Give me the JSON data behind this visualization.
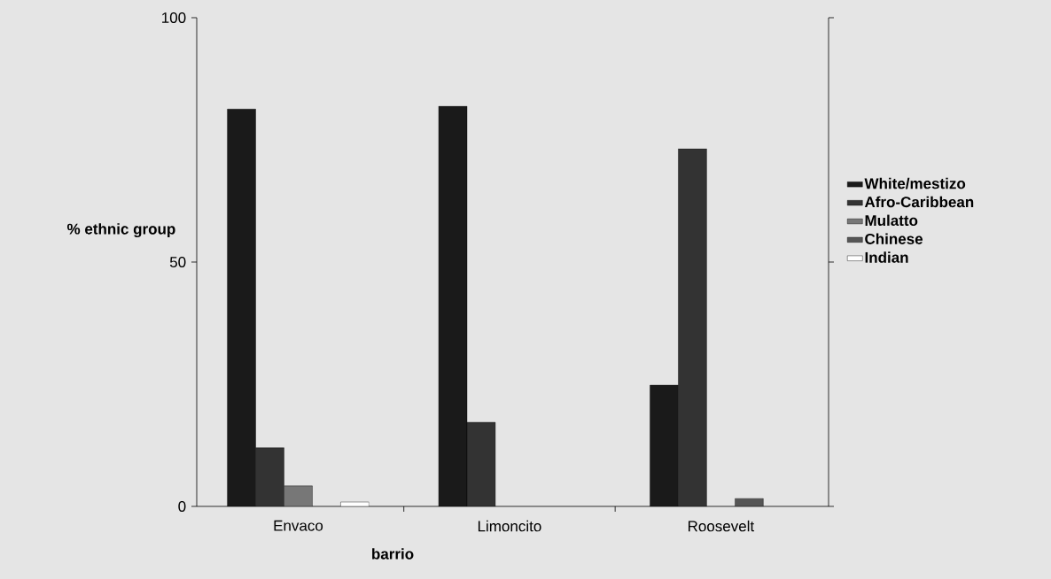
{
  "chart_data": {
    "type": "bar",
    "xlabel": "barrio",
    "ylabel": "% ethnic group",
    "categories": [
      "Envaco",
      "Limoncito",
      "Roosevelt"
    ],
    "series": [
      {
        "name": "White/mestizo",
        "color": "#1a1a1a",
        "values": [
          81.3,
          81.9,
          24.8
        ]
      },
      {
        "name": "Afro-Caribbean",
        "color": "#333333",
        "values": [
          12,
          17.2,
          73.2
        ]
      },
      {
        "name": "Mulatto",
        "color": "#777777",
        "values": [
          4.2,
          null,
          null
        ]
      },
      {
        "name": "Chinese",
        "color": "#555555",
        "values": [
          null,
          null,
          1.6
        ]
      },
      {
        "name": "Indian",
        "color": "#ffffff",
        "values": [
          0.9,
          null,
          null
        ]
      }
    ],
    "ylim": [
      0,
      100
    ],
    "yticks": [
      0,
      50,
      100
    ],
    "legend": "right"
  }
}
